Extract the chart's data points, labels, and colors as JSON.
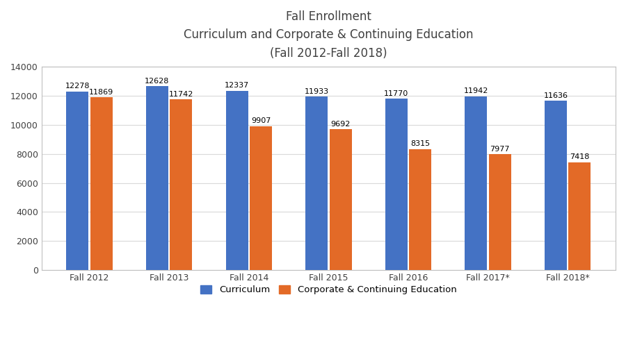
{
  "title_line1": "Fall Enrollment",
  "title_line2": "Curriculum and Corporate & Continuing Education",
  "title_line3": "(Fall 2012-Fall 2018)",
  "categories": [
    "Fall 2012",
    "Fall 2013",
    "Fall 2014",
    "Fall 2015",
    "Fall 2016",
    "Fall 2017*",
    "Fall 2018*"
  ],
  "curriculum": [
    12278,
    12628,
    12337,
    11933,
    11770,
    11942,
    11636
  ],
  "corporate": [
    11869,
    11742,
    9907,
    9692,
    8315,
    7977,
    7418
  ],
  "curriculum_color": "#4472C4",
  "corporate_color": "#E36A27",
  "background_color": "#FFFFFF",
  "ylim": [
    0,
    14000
  ],
  "yticks": [
    0,
    2000,
    4000,
    6000,
    8000,
    10000,
    12000,
    14000
  ],
  "bar_width": 0.28,
  "legend_label_curriculum": "Curriculum",
  "legend_label_corporate": "Corporate & Continuing Education",
  "title_fontsize": 12,
  "label_fontsize": 8,
  "tick_fontsize": 9,
  "legend_fontsize": 9.5,
  "grid_color": "#D9D9D9",
  "border_color": "#BFBFBF"
}
